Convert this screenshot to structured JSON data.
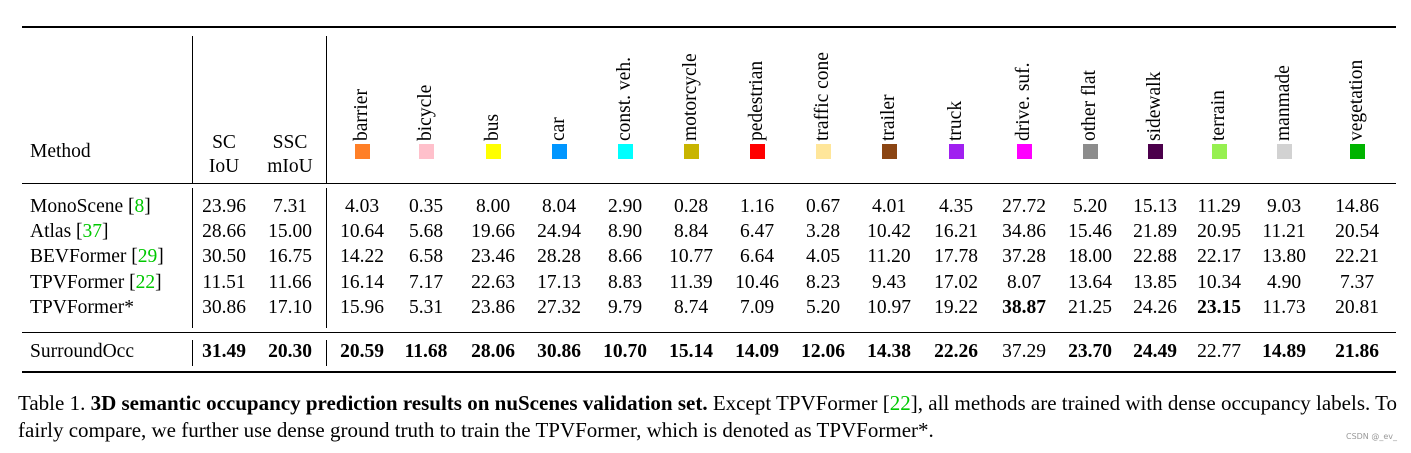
{
  "table": {
    "method_header": "Method",
    "sc_header": [
      "SC",
      "IoU"
    ],
    "ssc_header": [
      "SSC",
      "mIoU"
    ],
    "classes": [
      {
        "name": "barrier",
        "color": "#ff7f27"
      },
      {
        "name": "bicycle",
        "color": "#ffc0cb"
      },
      {
        "name": "bus",
        "color": "#ffff00"
      },
      {
        "name": "car",
        "color": "#0096ff"
      },
      {
        "name": "const. veh.",
        "color": "#00ffff"
      },
      {
        "name": "motorcycle",
        "color": "#c8b400"
      },
      {
        "name": "pedestrian",
        "color": "#ff0000"
      },
      {
        "name": "traffic cone",
        "color": "#ffe69a"
      },
      {
        "name": "trailer",
        "color": "#8b4513"
      },
      {
        "name": "truck",
        "color": "#a020f0"
      },
      {
        "name": "drive. suf.",
        "color": "#ff00ff"
      },
      {
        "name": "other flat",
        "color": "#8c8c8c"
      },
      {
        "name": "sidewalk",
        "color": "#4b004b"
      },
      {
        "name": "terrain",
        "color": "#96f050"
      },
      {
        "name": "manmade",
        "color": "#d2d2d2"
      },
      {
        "name": "vegetation",
        "color": "#00b400"
      }
    ],
    "rows": [
      {
        "method": "MonoScene",
        "ref": "8",
        "values": [
          "23.96",
          "7.31",
          "4.03",
          "0.35",
          "8.00",
          "8.04",
          "2.90",
          "0.28",
          "1.16",
          "0.67",
          "4.01",
          "4.35",
          "27.72",
          "5.20",
          "15.13",
          "11.29",
          "9.03",
          "14.86"
        ],
        "bold": []
      },
      {
        "method": "Atlas",
        "ref": "37",
        "values": [
          "28.66",
          "15.00",
          "10.64",
          "5.68",
          "19.66",
          "24.94",
          "8.90",
          "8.84",
          "6.47",
          "3.28",
          "10.42",
          "16.21",
          "34.86",
          "15.46",
          "21.89",
          "20.95",
          "11.21",
          "20.54"
        ],
        "bold": []
      },
      {
        "method": "BEVFormer",
        "ref": "29",
        "values": [
          "30.50",
          "16.75",
          "14.22",
          "6.58",
          "23.46",
          "28.28",
          "8.66",
          "10.77",
          "6.64",
          "4.05",
          "11.20",
          "17.78",
          "37.28",
          "18.00",
          "22.88",
          "22.17",
          "13.80",
          "22.21"
        ],
        "bold": []
      },
      {
        "method": "TPVFormer",
        "ref": "22",
        "values": [
          "11.51",
          "11.66",
          "16.14",
          "7.17",
          "22.63",
          "17.13",
          "8.83",
          "11.39",
          "10.46",
          "8.23",
          "9.43",
          "17.02",
          "8.07",
          "13.64",
          "13.85",
          "10.34",
          "4.90",
          "7.37"
        ],
        "bold": []
      },
      {
        "method": "TPVFormer*",
        "ref": "",
        "values": [
          "30.86",
          "17.10",
          "15.96",
          "5.31",
          "23.86",
          "27.32",
          "9.79",
          "8.74",
          "7.09",
          "5.20",
          "10.97",
          "19.22",
          "38.87",
          "21.25",
          "24.26",
          "23.15",
          "11.73",
          "20.81"
        ],
        "bold": [
          12,
          15
        ]
      },
      {
        "method": "SurroundOcc",
        "ref": "",
        "values": [
          "31.49",
          "20.30",
          "20.59",
          "11.68",
          "28.06",
          "30.86",
          "10.70",
          "15.14",
          "14.09",
          "12.06",
          "14.38",
          "22.26",
          "37.29",
          "23.70",
          "24.49",
          "22.77",
          "14.89",
          "21.86"
        ],
        "bold": [
          0,
          1,
          2,
          3,
          4,
          5,
          6,
          7,
          8,
          9,
          10,
          11,
          13,
          14,
          16,
          17
        ]
      }
    ]
  },
  "caption": {
    "label": "Table 1.",
    "title": "3D semantic occupancy prediction results on nuScenes validation set.",
    "text_a": "Except TPVFormer [",
    "ref": "22",
    "text_b": "], all methods are trained with dense occupancy labels. To fairly compare, we further use dense ground truth to train the TPVFormer, which is denoted as TPVFormer*."
  },
  "watermark": "CSDN @_ev_"
}
